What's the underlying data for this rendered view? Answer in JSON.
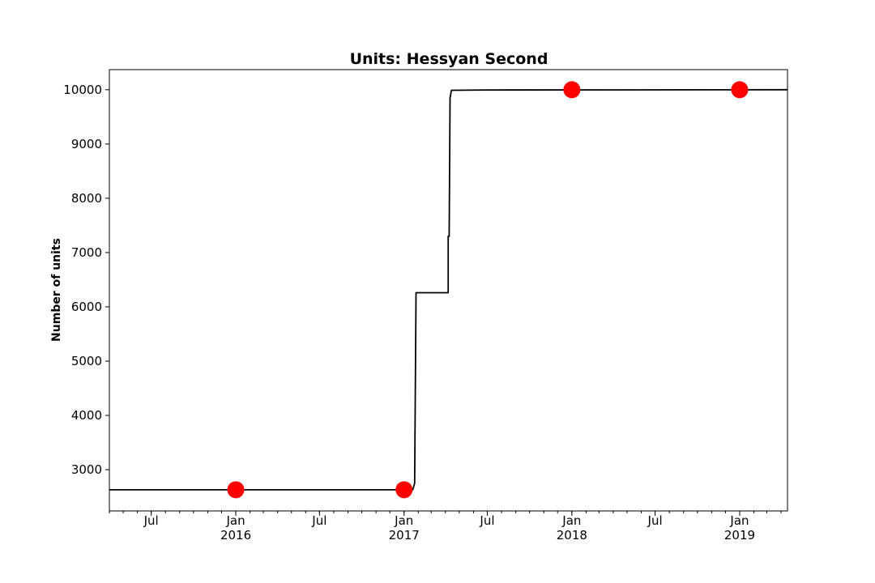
{
  "chart_data": {
    "type": "line",
    "title": "Units: Hessyan Second",
    "xlabel": "",
    "ylabel": "Number of units",
    "xlim": [
      "2015-04-01",
      "2019-04-15"
    ],
    "ylim": [
      2240,
      10370
    ],
    "y_ticks": [
      3000,
      4000,
      5000,
      6000,
      7000,
      8000,
      9000,
      10000
    ],
    "x_ticks": [
      {
        "date": "2015-07-01",
        "label": "Jul",
        "year": ""
      },
      {
        "date": "2016-01-01",
        "label": "Jan",
        "year": "2016"
      },
      {
        "date": "2016-07-01",
        "label": "Jul",
        "year": ""
      },
      {
        "date": "2017-01-01",
        "label": "Jan",
        "year": "2017"
      },
      {
        "date": "2017-07-01",
        "label": "Jul",
        "year": ""
      },
      {
        "date": "2018-01-01",
        "label": "Jan",
        "year": "2018"
      },
      {
        "date": "2018-07-01",
        "label": "Jul",
        "year": ""
      },
      {
        "date": "2019-01-01",
        "label": "Jan",
        "year": "2019"
      }
    ],
    "series": [
      {
        "line_color": "#000000",
        "points": [
          {
            "x": "2015-04-01",
            "y": 2630
          },
          {
            "x": "2017-01-01",
            "y": 2630
          },
          {
            "x": "2017-01-20",
            "y": 2630
          },
          {
            "x": "2017-01-24",
            "y": 2750
          },
          {
            "x": "2017-01-27",
            "y": 6260
          },
          {
            "x": "2017-04-07",
            "y": 6260
          },
          {
            "x": "2017-04-07",
            "y": 7300
          },
          {
            "x": "2017-04-09",
            "y": 7300
          },
          {
            "x": "2017-04-11",
            "y": 9850
          },
          {
            "x": "2017-04-14",
            "y": 9990
          },
          {
            "x": "2017-07-01",
            "y": 9995
          },
          {
            "x": "2019-04-15",
            "y": 10000
          }
        ]
      },
      {
        "marker_color": "#ff0000",
        "points": [
          {
            "x": "2016-01-01",
            "y": 2630
          },
          {
            "x": "2017-01-01",
            "y": 2630
          },
          {
            "x": "2018-01-01",
            "y": 10000
          },
          {
            "x": "2019-01-01",
            "y": 10000
          }
        ]
      }
    ],
    "grid": false
  }
}
